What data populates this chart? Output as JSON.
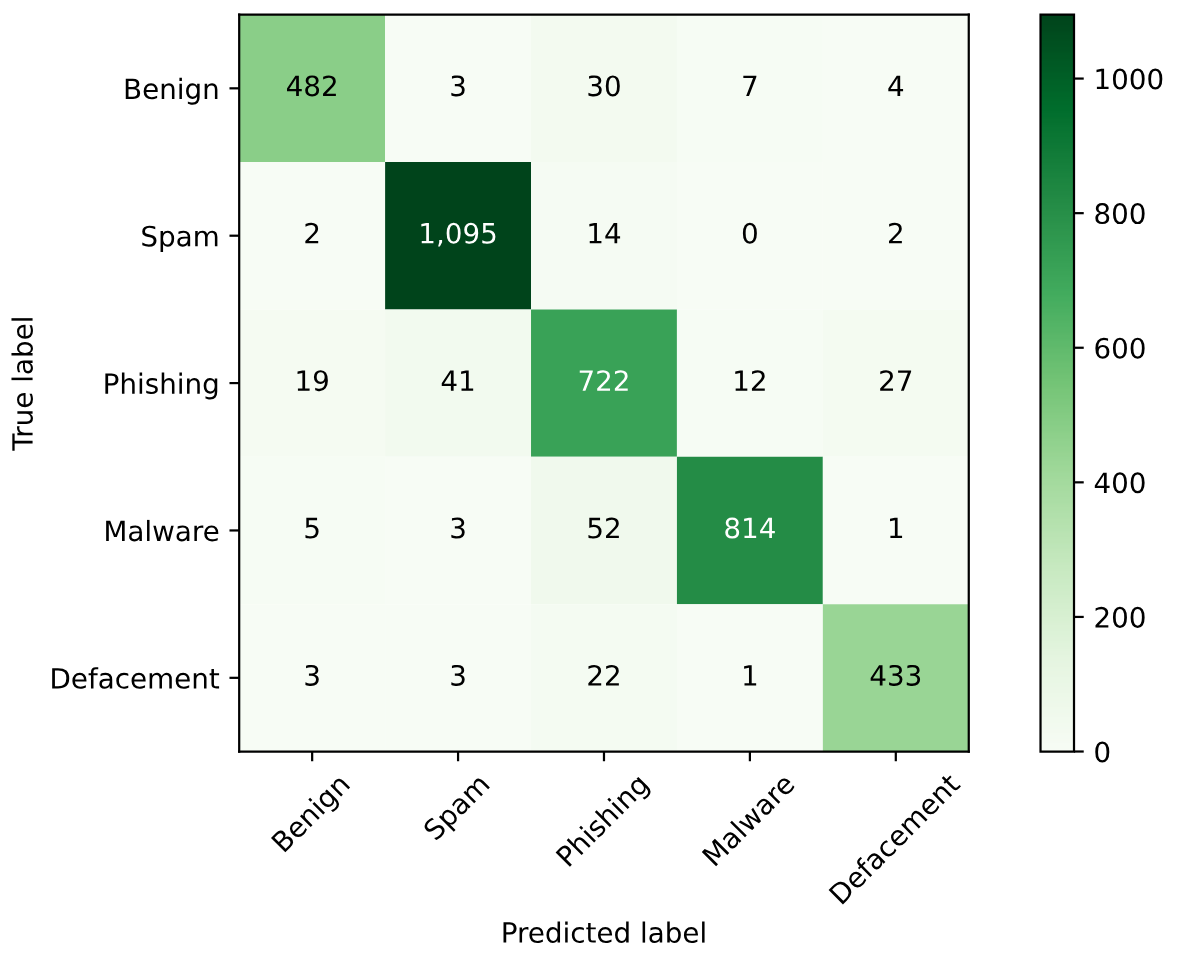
{
  "chart_data": {
    "type": "heatmap",
    "xlabel": "Predicted label",
    "ylabel": "True label",
    "categories": [
      "Benign",
      "Spam",
      "Phishing",
      "Malware",
      "Defacement"
    ],
    "y_categories": [
      "Benign",
      "Spam",
      "Phishing",
      "Malware",
      "Defacement"
    ],
    "cells": [
      [
        482,
        3,
        30,
        7,
        4
      ],
      [
        2,
        1095,
        14,
        0,
        2
      ],
      [
        19,
        41,
        722,
        12,
        27
      ],
      [
        5,
        3,
        52,
        814,
        1
      ],
      [
        3,
        3,
        22,
        1,
        433
      ]
    ],
    "cell_labels": [
      [
        "482",
        "3",
        "30",
        "7",
        "4"
      ],
      [
        "2",
        "1,095",
        "14",
        "0",
        "2"
      ],
      [
        "19",
        "41",
        "722",
        "12",
        "27"
      ],
      [
        "5",
        "3",
        "52",
        "814",
        "1"
      ],
      [
        "3",
        "3",
        "22",
        "1",
        "433"
      ]
    ],
    "clim": [
      0,
      1095
    ],
    "cticks": [
      0,
      200,
      400,
      600,
      800,
      1000
    ]
  }
}
